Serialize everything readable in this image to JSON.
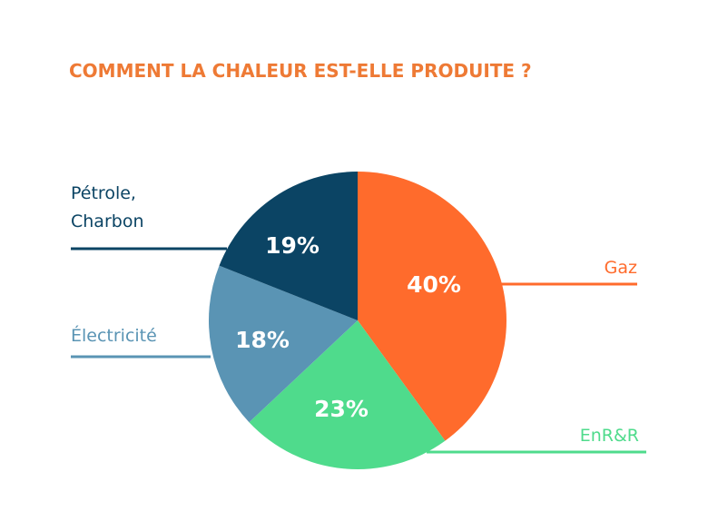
{
  "chart_data": {
    "type": "pie",
    "title": "COMMENT LA CHALEUR EST-ELLE PRODUITE ?",
    "title_color": "#EE7A35",
    "slices": [
      {
        "label": "Gaz",
        "value": 40,
        "value_label": "40%",
        "color": "#FF6B2C"
      },
      {
        "label": "EnR&R",
        "value": 23,
        "value_label": "23%",
        "color": "#4FDB8C"
      },
      {
        "label": "Électricité",
        "value": 18,
        "value_label": "18%",
        "color": "#5A94B4"
      },
      {
        "label_lines": [
          "Pétrole,",
          "Charbon"
        ],
        "value": 19,
        "value_label": "19%",
        "color": "#0B4464"
      }
    ]
  }
}
